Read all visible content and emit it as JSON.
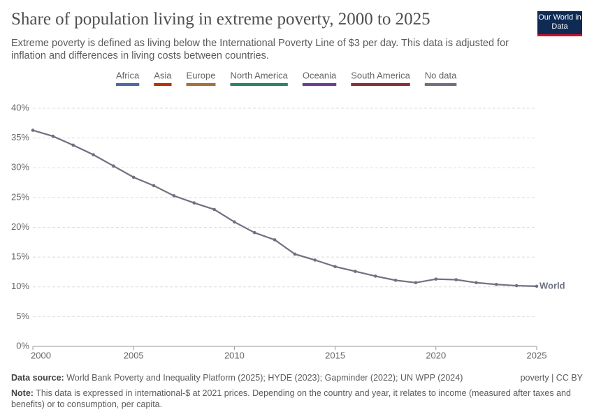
{
  "chart_data": {
    "type": "line",
    "title": "Share of population living in extreme poverty, 2000 to 2025",
    "subtitle": "Extreme poverty is defined as living below the International Poverty Line of $3 per day. This data is adjusted for inflation and differences in living costs between countries.",
    "logo": "Our World in Data",
    "legend": [
      {
        "name": "Africa",
        "color": "#4c6a9c"
      },
      {
        "name": "Asia",
        "color": "#b13507"
      },
      {
        "name": "Europe",
        "color": "#a2723a"
      },
      {
        "name": "North America",
        "color": "#2c8465"
      },
      {
        "name": "Oceania",
        "color": "#6d3e91"
      },
      {
        "name": "South America",
        "color": "#883039"
      },
      {
        "name": "No data",
        "color": "#6e7180"
      }
    ],
    "x": [
      2000,
      2001,
      2002,
      2003,
      2004,
      2005,
      2006,
      2007,
      2008,
      2009,
      2010,
      2011,
      2012,
      2013,
      2014,
      2015,
      2016,
      2017,
      2018,
      2019,
      2020,
      2021,
      2022,
      2023,
      2024,
      2025
    ],
    "series": [
      {
        "name": "World",
        "color": "#6e7180",
        "values": [
          36.3,
          35.3,
          33.8,
          32.2,
          30.3,
          28.4,
          27.0,
          25.3,
          24.1,
          23.0,
          20.9,
          19.1,
          17.9,
          15.5,
          14.5,
          13.4,
          12.6,
          11.8,
          11.1,
          10.7,
          11.3,
          11.2,
          10.7,
          10.4,
          10.2,
          10.1
        ]
      }
    ],
    "xlim": [
      2000,
      2025
    ],
    "xticks": [
      2000,
      2005,
      2010,
      2015,
      2020,
      2025
    ],
    "ylim": [
      0,
      40
    ],
    "yticks": [
      {
        "value": 0,
        "label": "0%"
      },
      {
        "value": 5,
        "label": "5%"
      },
      {
        "value": 10,
        "label": "10%"
      },
      {
        "value": 15,
        "label": "15%"
      },
      {
        "value": 20,
        "label": "20%"
      },
      {
        "value": 25,
        "label": "25%"
      },
      {
        "value": 30,
        "label": "30%"
      },
      {
        "value": 35,
        "label": "35%"
      },
      {
        "value": 40,
        "label": "40%"
      }
    ],
    "grid": true,
    "source_label": "Data source:",
    "source": "World Bank Poverty and Inequality Platform (2025); HYDE (2023); Gapminder (2022); UN WPP (2024)",
    "license": "poverty | CC BY",
    "note_label": "Note:",
    "note": "This data is expressed in international-$ at 2021 prices. Depending on the country and year, it relates to income (measured after taxes and benefits) or to consumption, per capita."
  }
}
